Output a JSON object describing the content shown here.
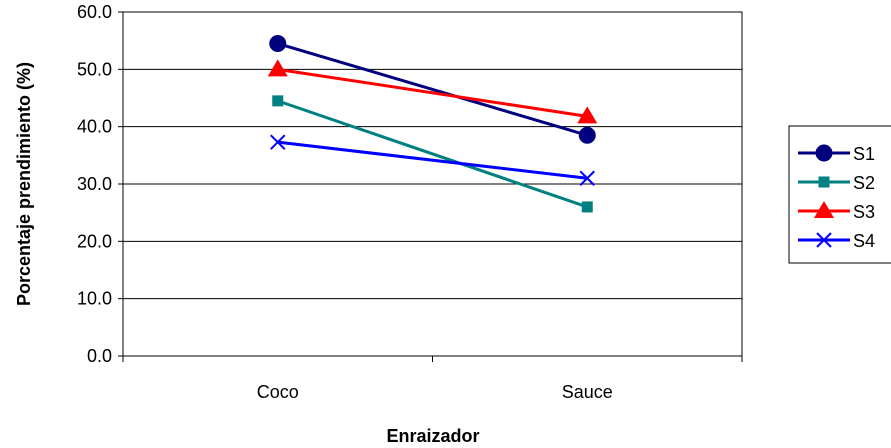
{
  "chart_data": {
    "type": "line",
    "categories": [
      "Coco",
      "Sauce"
    ],
    "series": [
      {
        "name": "S1",
        "values": [
          54.5,
          38.5
        ],
        "color": "#000080",
        "marker": "circle"
      },
      {
        "name": "S2",
        "values": [
          44.5,
          26.0
        ],
        "color": "#008080",
        "marker": "square"
      },
      {
        "name": "S3",
        "values": [
          50.0,
          41.8
        ],
        "color": "#FF0000",
        "marker": "triangle"
      },
      {
        "name": "S4",
        "values": [
          37.3,
          31.0
        ],
        "color": "#0000FF",
        "marker": "x"
      }
    ],
    "yticks": [
      "0.0",
      "10.0",
      "20.0",
      "30.0",
      "40.0",
      "50.0",
      "60.0"
    ],
    "title": "",
    "xlabel": "Enraizador",
    "ylabel": "Porcentaje prendimiento (%)",
    "ylim": [
      0,
      60
    ],
    "grid": true,
    "legend": "right"
  }
}
